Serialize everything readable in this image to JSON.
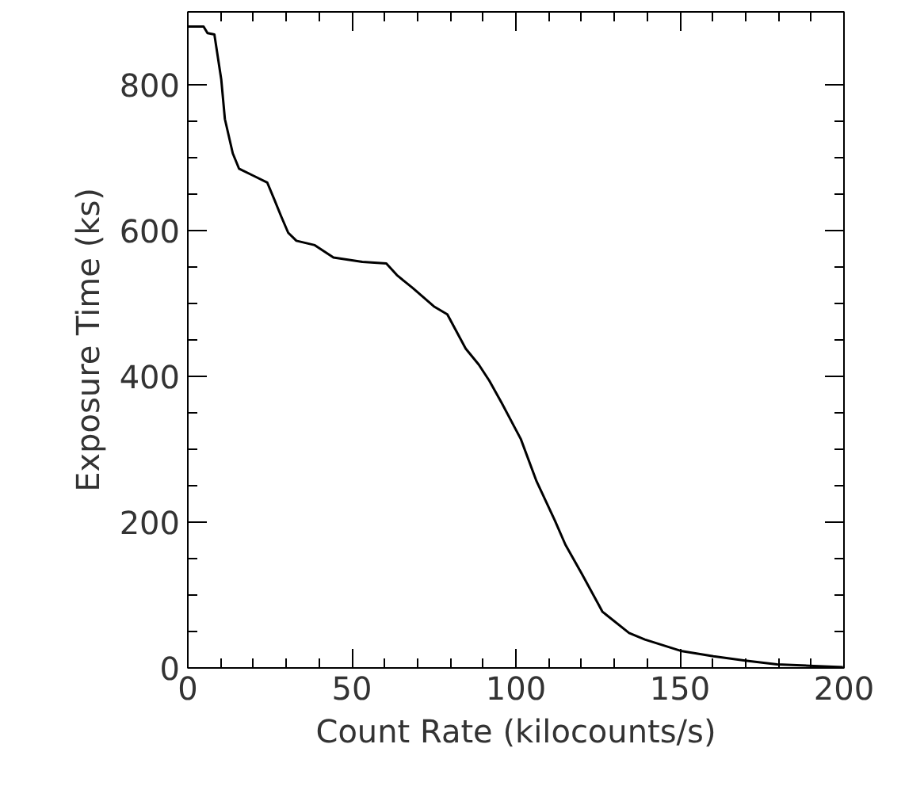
{
  "chart_data": {
    "type": "line",
    "xlabel": "Count Rate (kilocounts/s)",
    "ylabel": "Exposure Time (ks)",
    "xlim": [
      0,
      200
    ],
    "ylim": [
      0,
      900
    ],
    "xticks": [
      0,
      50,
      100,
      150,
      200
    ],
    "yticks": [
      0,
      200,
      400,
      600,
      800
    ],
    "grid": false,
    "marker": "none",
    "line_style": "solid",
    "series": [
      {
        "color": "#000000",
        "x": [
          0,
          4.8,
          6.0,
          8.1,
          10.2,
          11.3,
          13.7,
          15.6,
          20.1,
          24.2,
          26.6,
          28.5,
          30.6,
          33.1,
          38.7,
          44.4,
          53.2,
          60.5,
          63.7,
          68.6,
          75.0,
          79.1,
          84.7,
          88.7,
          91.9,
          95.5,
          101.5,
          106.3,
          111.9,
          115.1,
          120.0,
          126.4,
          134.5,
          139.3,
          150.6,
          160.2,
          169.9,
          179.6,
          189.3,
          199.7
        ],
        "values": [
          880,
          880,
          871,
          869,
          807,
          753,
          706,
          685,
          675,
          666,
          640,
          619,
          597,
          586,
          580,
          563,
          557,
          555,
          539,
          521,
          496,
          485,
          438,
          416,
          394,
          365,
          314,
          256,
          202,
          169,
          130,
          77,
          48,
          39,
          23,
          16,
          10,
          5,
          3,
          1
        ]
      }
    ]
  }
}
